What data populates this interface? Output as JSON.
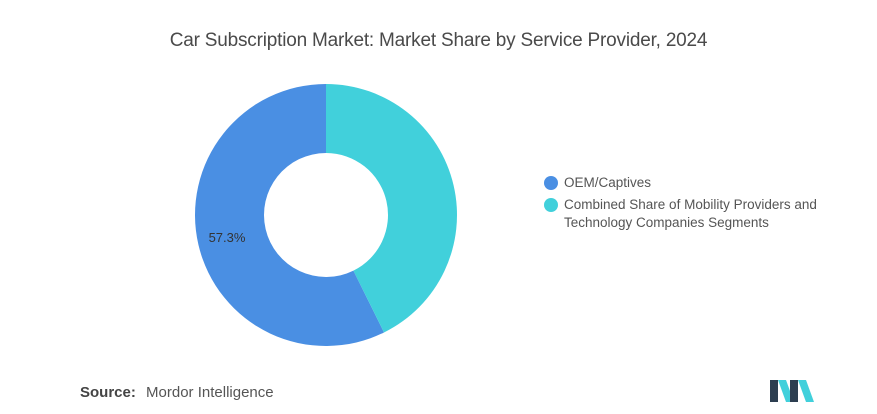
{
  "chart_data": {
    "type": "pie",
    "variant": "donut",
    "title": "Car Subscription Market: Market Share by Service Provider, 2024",
    "series": [
      {
        "name": "OEM/Captives",
        "value": 57.3,
        "label": "57.3%",
        "color": "#4a8fe3"
      },
      {
        "name": "Combined Share of Mobility Providers and Technology Companies Segments",
        "value": 42.7,
        "label": "",
        "color": "#41d0db"
      }
    ],
    "legend_position": "right"
  },
  "legend": {
    "items": [
      {
        "label": "OEM/Captives",
        "color": "#4a8fe3"
      },
      {
        "label": "Combined Share of Mobility Providers and Technology Companies Segments",
        "color": "#41d0db"
      }
    ]
  },
  "footer": {
    "source_label": "Source:",
    "source_value": "Mordor Intelligence"
  },
  "logo": {
    "icon": "mordor-intelligence-logo",
    "colors": [
      "#2c3e50",
      "#41d0db"
    ]
  }
}
